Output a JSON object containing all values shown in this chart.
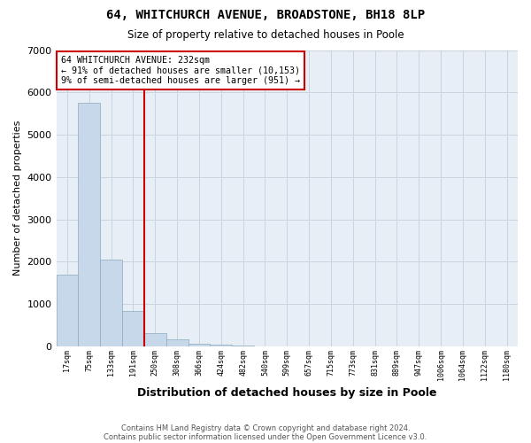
{
  "title1": "64, WHITCHURCH AVENUE, BROADSTONE, BH18 8LP",
  "title2": "Size of property relative to detached houses in Poole",
  "xlabel": "Distribution of detached houses by size in Poole",
  "ylabel": "Number of detached properties",
  "footnote1": "Contains HM Land Registry data © Crown copyright and database right 2024.",
  "footnote2": "Contains public sector information licensed under the Open Government Licence v3.0.",
  "bar_color": "#c6d8ea",
  "bar_edge_color": "#8baabf",
  "vline_color": "#cc0000",
  "vline_x": 3.5,
  "annotation_line1": "64 WHITCHURCH AVENUE: 232sqm",
  "annotation_line2": "← 91% of detached houses are smaller (10,153)",
  "annotation_line3": "9% of semi-detached houses are larger (951) →",
  "annotation_box_color": "white",
  "annotation_box_edge": "#cc0000",
  "categories": [
    "17sqm",
    "75sqm",
    "133sqm",
    "191sqm",
    "250sqm",
    "308sqm",
    "366sqm",
    "424sqm",
    "482sqm",
    "540sqm",
    "599sqm",
    "657sqm",
    "715sqm",
    "773sqm",
    "831sqm",
    "889sqm",
    "947sqm",
    "1006sqm",
    "1064sqm",
    "1122sqm",
    "1180sqm"
  ],
  "values": [
    1700,
    5750,
    2050,
    830,
    310,
    160,
    65,
    30,
    10,
    5,
    3,
    2,
    1,
    0,
    0,
    0,
    0,
    0,
    0,
    0,
    0
  ],
  "ylim": [
    0,
    7000
  ],
  "yticks": [
    0,
    1000,
    2000,
    3000,
    4000,
    5000,
    6000,
    7000
  ],
  "grid_color": "#c8d4e0",
  "background_color": "#e8eef5"
}
